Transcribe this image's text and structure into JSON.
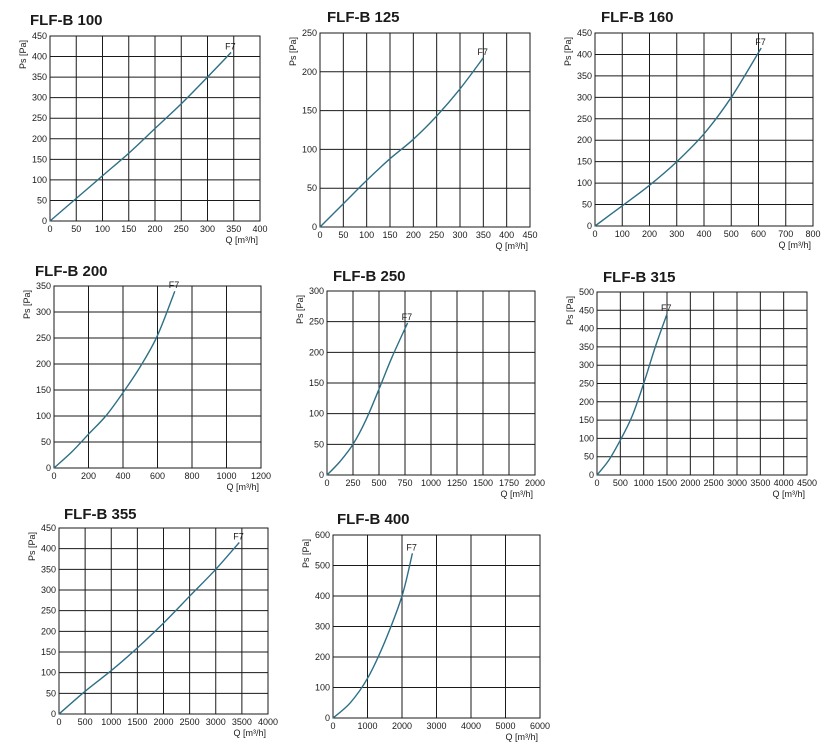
{
  "chart_data": [
    {
      "type": "line",
      "title": "FLF-B 100",
      "ylabel": "Ps [Pa]",
      "xlabel": "Q [m³/h]",
      "xlim": [
        0,
        400
      ],
      "ylim": [
        0,
        450
      ],
      "xticks": [
        0,
        50,
        100,
        150,
        200,
        250,
        300,
        350,
        400
      ],
      "yticks": [
        0,
        50,
        100,
        150,
        200,
        250,
        300,
        350,
        400,
        450
      ],
      "grid": true,
      "series": [
        {
          "name": "F7",
          "points": [
            [
              0,
              0
            ],
            [
              50,
              55
            ],
            [
              100,
              110
            ],
            [
              150,
              165
            ],
            [
              200,
              225
            ],
            [
              250,
              285
            ],
            [
              300,
              350
            ],
            [
              345,
              410
            ]
          ]
        }
      ]
    },
    {
      "type": "line",
      "title": "FLF-B 125",
      "ylabel": "Ps [Pa]",
      "xlabel": "Q [m³/h]",
      "xlim": [
        0,
        450
      ],
      "ylim": [
        0,
        250
      ],
      "xticks": [
        0,
        50,
        100,
        150,
        200,
        250,
        300,
        350,
        400,
        450
      ],
      "yticks": [
        0,
        50,
        100,
        150,
        200,
        250
      ],
      "grid": true,
      "series": [
        {
          "name": "F7",
          "points": [
            [
              0,
              0
            ],
            [
              50,
              30
            ],
            [
              100,
              60
            ],
            [
              150,
              88
            ],
            [
              200,
              113
            ],
            [
              250,
              143
            ],
            [
              300,
              178
            ],
            [
              350,
              218
            ]
          ]
        }
      ]
    },
    {
      "type": "line",
      "title": "FLF-B 160",
      "ylabel": "Ps [Pa]",
      "xlabel": "Q [m³/h]",
      "xlim": [
        0,
        800
      ],
      "ylim": [
        0,
        450
      ],
      "xticks": [
        0,
        100,
        200,
        300,
        400,
        500,
        600,
        700,
        800
      ],
      "yticks": [
        0,
        50,
        100,
        150,
        200,
        250,
        300,
        350,
        400,
        450
      ],
      "grid": true,
      "series": [
        {
          "name": "F7",
          "points": [
            [
              0,
              0
            ],
            [
              100,
              47
            ],
            [
              200,
              95
            ],
            [
              300,
              150
            ],
            [
              400,
              215
            ],
            [
              500,
              300
            ],
            [
              610,
              415
            ]
          ]
        }
      ]
    },
    {
      "type": "line",
      "title": "FLF-B 200",
      "ylabel": "Ps [Pa]",
      "xlabel": "Q [m³/h]",
      "xlim": [
        0,
        1200
      ],
      "ylim": [
        0,
        350
      ],
      "xticks": [
        0,
        200,
        400,
        600,
        800,
        1000,
        1200
      ],
      "yticks": [
        0,
        50,
        100,
        150,
        200,
        250,
        300,
        350
      ],
      "grid": true,
      "series": [
        {
          "name": "F7",
          "points": [
            [
              0,
              0
            ],
            [
              100,
              30
            ],
            [
              200,
              65
            ],
            [
              300,
              100
            ],
            [
              400,
              145
            ],
            [
              500,
              195
            ],
            [
              600,
              255
            ],
            [
              700,
              340
            ]
          ]
        }
      ]
    },
    {
      "type": "line",
      "title": "FLF-B 250",
      "ylabel": "Ps [Pa]",
      "xlabel": "Q [m³/h]",
      "xlim": [
        0,
        2000
      ],
      "ylim": [
        0,
        300
      ],
      "xticks": [
        0,
        250,
        500,
        750,
        1000,
        1250,
        1500,
        1750,
        2000
      ],
      "yticks": [
        0,
        50,
        100,
        150,
        200,
        250,
        300
      ],
      "grid": true,
      "series": [
        {
          "name": "F7",
          "points": [
            [
              0,
              0
            ],
            [
              125,
              22
            ],
            [
              250,
              50
            ],
            [
              375,
              90
            ],
            [
              500,
              140
            ],
            [
              625,
              192
            ],
            [
              775,
              248
            ]
          ]
        }
      ]
    },
    {
      "type": "line",
      "title": "FLF-B 315",
      "ylabel": "Ps [Pa]",
      "xlabel": "Q [m³/h]",
      "xlim": [
        0,
        4500
      ],
      "ylim": [
        0,
        500
      ],
      "xticks": [
        0,
        500,
        1000,
        1500,
        2000,
        2500,
        3000,
        3500,
        4000,
        4500
      ],
      "yticks": [
        0,
        50,
        100,
        150,
        200,
        250,
        300,
        350,
        400,
        450,
        500
      ],
      "grid": true,
      "series": [
        {
          "name": "F7",
          "points": [
            [
              0,
              0
            ],
            [
              250,
              40
            ],
            [
              500,
              95
            ],
            [
              750,
              160
            ],
            [
              1000,
              250
            ],
            [
              1250,
              350
            ],
            [
              1500,
              440
            ]
          ]
        }
      ]
    },
    {
      "type": "line",
      "title": "FLF-B 355",
      "ylabel": "Ps [Pa]",
      "xlabel": "Q [m³/h]",
      "xlim": [
        0,
        4000
      ],
      "ylim": [
        0,
        450
      ],
      "xticks": [
        0,
        500,
        1000,
        1500,
        2000,
        2500,
        3000,
        3500,
        4000
      ],
      "yticks": [
        0,
        50,
        100,
        150,
        200,
        250,
        300,
        350,
        400,
        450
      ],
      "grid": true,
      "series": [
        {
          "name": "F7",
          "points": [
            [
              0,
              0
            ],
            [
              500,
              55
            ],
            [
              1000,
              105
            ],
            [
              1500,
              160
            ],
            [
              2000,
              220
            ],
            [
              2500,
              285
            ],
            [
              3000,
              350
            ],
            [
              3450,
              415
            ]
          ]
        }
      ]
    },
    {
      "type": "line",
      "title": "FLF-B 400",
      "ylabel": "Ps [Pa]",
      "xlabel": "Q [m³/h]",
      "xlim": [
        0,
        6000
      ],
      "ylim": [
        0,
        600
      ],
      "xticks": [
        0,
        1000,
        2000,
        3000,
        4000,
        5000,
        6000
      ],
      "yticks": [
        0,
        100,
        200,
        300,
        400,
        500,
        600
      ],
      "grid": true,
      "series": [
        {
          "name": "F7",
          "points": [
            [
              0,
              0
            ],
            [
              500,
              50
            ],
            [
              1000,
              130
            ],
            [
              1500,
              250
            ],
            [
              2000,
              400
            ],
            [
              2300,
              540
            ]
          ]
        }
      ]
    }
  ],
  "style": {
    "grid_color": "#1a1a1a",
    "curve_color": "#2e6f86",
    "text_color": "#1a1a1a"
  }
}
